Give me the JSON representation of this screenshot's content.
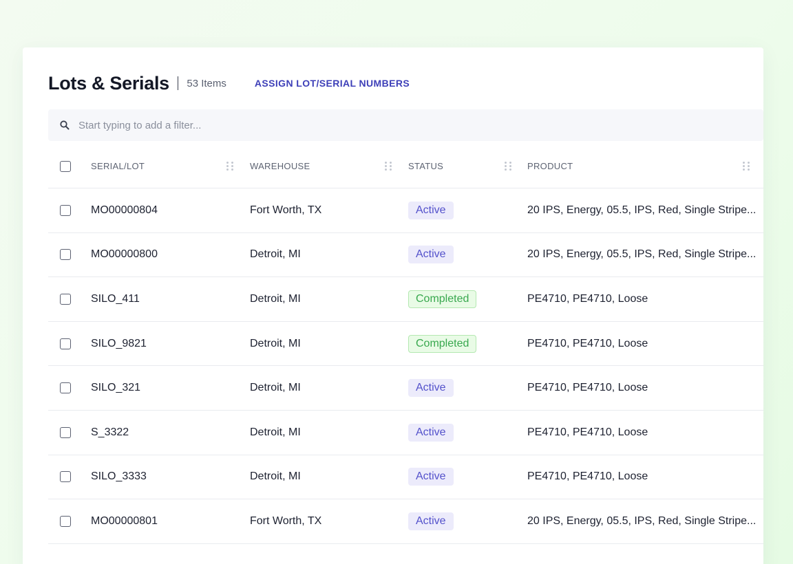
{
  "header": {
    "title": "Lots & Serials",
    "count": "53 Items",
    "assign_label": "ASSIGN LOT/SERIAL NUMBERS"
  },
  "filter": {
    "placeholder": "Start typing to add a filter...",
    "icon": "search-icon"
  },
  "columns": [
    "SERIAL/LOT",
    "WAREHOUSE",
    "STATUS",
    "PRODUCT"
  ],
  "rows": [
    {
      "serial": "MO00000804",
      "warehouse": "Fort Worth, TX",
      "status": "Active",
      "product": "20 IPS, Energy, 05.5, IPS, Red, Single Stripe..."
    },
    {
      "serial": "MO00000800",
      "warehouse": "Detroit, MI",
      "status": "Active",
      "product": "20 IPS, Energy, 05.5, IPS, Red, Single Stripe..."
    },
    {
      "serial": "SILO_411",
      "warehouse": "Detroit, MI",
      "status": "Completed",
      "product": "PE4710, PE4710, Loose"
    },
    {
      "serial": "SILO_9821",
      "warehouse": "Detroit, MI",
      "status": "Completed",
      "product": "PE4710, PE4710, Loose"
    },
    {
      "serial": "SILO_321",
      "warehouse": "Detroit, MI",
      "status": "Active",
      "product": "PE4710, PE4710, Loose"
    },
    {
      "serial": "S_3322",
      "warehouse": "Detroit, MI",
      "status": "Active",
      "product": "PE4710, PE4710, Loose"
    },
    {
      "serial": "SILO_3333",
      "warehouse": "Detroit, MI",
      "status": "Active",
      "product": "PE4710, PE4710, Loose"
    },
    {
      "serial": "MO00000801",
      "warehouse": "Fort Worth, TX",
      "status": "Active",
      "product": "20 IPS, Energy, 05.5, IPS, Red, Single Stripe..."
    }
  ],
  "colors": {
    "accent": "#3d3fb8",
    "active_bg": "#ecebfb",
    "active_text": "#5351cb",
    "completed_bg": "#e9fbe6",
    "completed_text": "#38a84e"
  }
}
